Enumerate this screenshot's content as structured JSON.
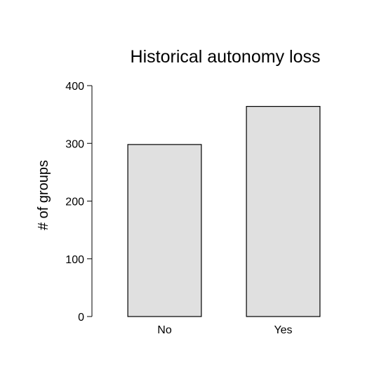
{
  "chart_data": {
    "type": "bar",
    "title": "Historical autonomy loss",
    "xlabel": "",
    "ylabel": "# of groups",
    "categories": [
      "No",
      "Yes"
    ],
    "values": [
      298,
      364
    ],
    "ylim": [
      0,
      400
    ],
    "yticks": [
      0,
      100,
      200,
      300,
      400
    ],
    "grid": false,
    "legend": "none",
    "bar_color": "#e0e0e0",
    "edge_color": "#000000"
  }
}
